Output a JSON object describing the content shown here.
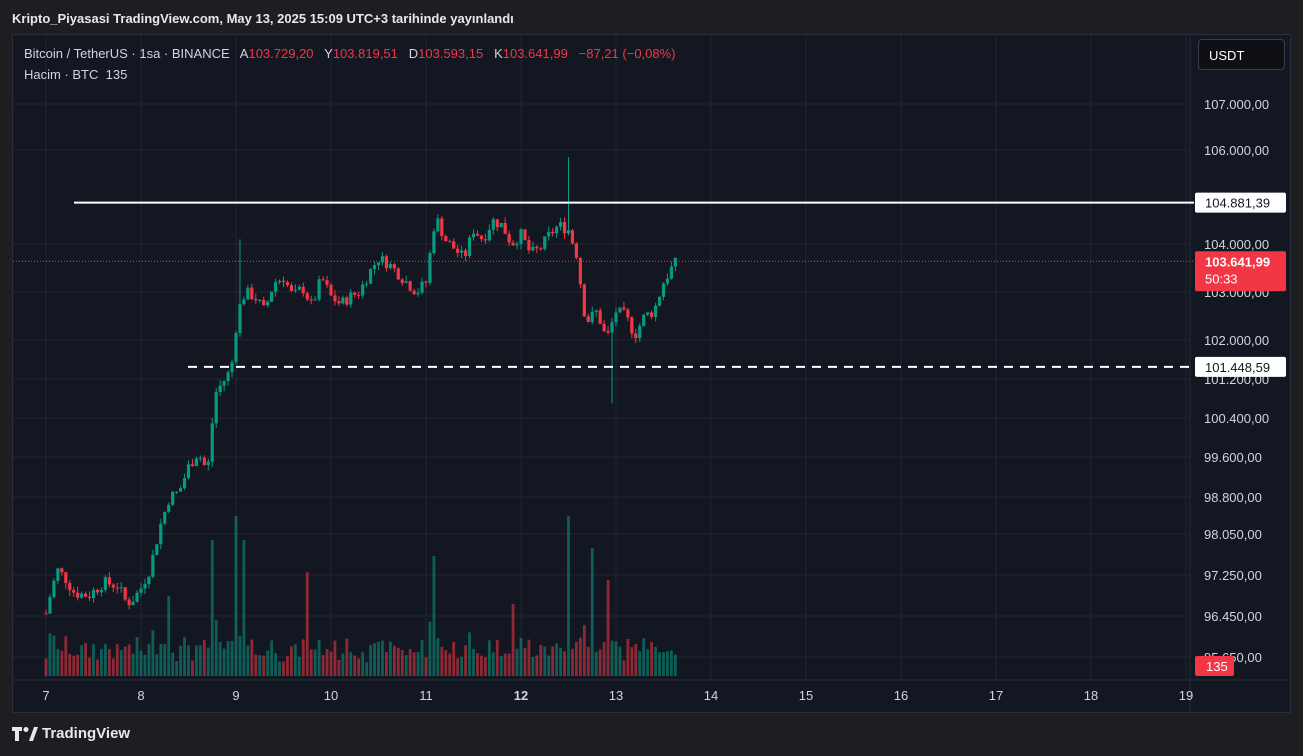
{
  "header": {
    "publish_text": "Kripto_Piyasasi TradingView.com, May 13, 2025 15:09 UTC+3 tarihinde yayınlandı"
  },
  "legend": {
    "symbol": "Bitcoin / TetherUS · 1sa · BINANCE",
    "open_label": "A",
    "open": "103.729,20",
    "high_label": "Y",
    "high": "103.819,51",
    "low_label": "D",
    "low": "103.593,15",
    "close_label": "K",
    "close": "103.641,99",
    "change": "−87,21 (−0,08%)",
    "volume_label": "Hacim · BTC",
    "volume": "135"
  },
  "currency_button": "USDT",
  "footer": {
    "brand": "TradingView"
  },
  "colors": {
    "up": "#089981",
    "down": "#f23645",
    "grid": "#232632",
    "axis_text": "#d1d4dc",
    "background": "#131722"
  },
  "chart_data": {
    "type": "candlestick",
    "y_ticks": [
      "107.000,00",
      "106.000,00",
      "104.000,00",
      "103.000,00",
      "102.000,00",
      "101.200,00",
      "100.400,00",
      "99.600,00",
      "98.800,00",
      "98.050,00",
      "97.250,00",
      "96.450,00",
      "95.650,00"
    ],
    "x_ticks": [
      "7",
      "8",
      "9",
      "10",
      "11",
      "12",
      "13",
      "14",
      "15",
      "16",
      "17",
      "18",
      "19"
    ],
    "x_bold_tick": "12",
    "resistance_label": "104.881,39",
    "support_label": "101.448,59",
    "last_price_label": "103.641,99",
    "countdown_label": "50:33",
    "volume_label": "135",
    "price_path": [
      [
        0,
        96.5
      ],
      [
        0.05,
        96.9
      ],
      [
        0.12,
        97.35
      ],
      [
        0.2,
        97.2
      ],
      [
        0.3,
        96.9
      ],
      [
        0.45,
        96.85
      ],
      [
        0.6,
        97.1
      ],
      [
        0.75,
        97.05
      ],
      [
        0.85,
        96.7
      ],
      [
        0.93,
        96.8
      ],
      [
        1.0,
        97.0
      ],
      [
        1.1,
        97.4
      ],
      [
        1.2,
        98.2
      ],
      [
        1.3,
        98.8
      ],
      [
        1.4,
        98.9
      ],
      [
        1.5,
        99.4
      ],
      [
        1.6,
        99.7
      ],
      [
        1.7,
        99.3
      ],
      [
        1.78,
        100.9
      ],
      [
        1.85,
        101.1
      ],
      [
        1.95,
        101.4
      ],
      [
        2.02,
        102.6
      ],
      [
        2.1,
        103.0
      ],
      [
        2.2,
        102.9
      ],
      [
        2.3,
        102.6
      ],
      [
        2.4,
        103.2
      ],
      [
        2.5,
        103.3
      ],
      [
        2.6,
        102.9
      ],
      [
        2.7,
        103.1
      ],
      [
        2.8,
        102.7
      ],
      [
        2.9,
        103.3
      ],
      [
        3.0,
        102.9
      ],
      [
        3.1,
        102.75
      ],
      [
        3.2,
        102.9
      ],
      [
        3.3,
        103.0
      ],
      [
        3.4,
        103.4
      ],
      [
        3.5,
        103.7
      ],
      [
        3.6,
        103.6
      ],
      [
        3.7,
        103.4
      ],
      [
        3.8,
        103.2
      ],
      [
        3.9,
        103.0
      ],
      [
        4.0,
        103.2
      ],
      [
        4.1,
        104.6
      ],
      [
        4.2,
        104.1
      ],
      [
        4.3,
        103.9
      ],
      [
        4.4,
        103.7
      ],
      [
        4.5,
        104.3
      ],
      [
        4.6,
        104.1
      ],
      [
        4.7,
        104.5
      ],
      [
        4.8,
        104.4
      ],
      [
        4.9,
        104.0
      ],
      [
        5.0,
        104.2
      ],
      [
        5.1,
        103.8
      ],
      [
        5.2,
        103.9
      ],
      [
        5.3,
        104.2
      ],
      [
        5.4,
        104.4
      ],
      [
        5.5,
        104.3
      ],
      [
        5.6,
        103.7
      ],
      [
        5.65,
        102.7
      ],
      [
        5.7,
        102.4
      ],
      [
        5.8,
        102.6
      ],
      [
        5.9,
        102.0
      ],
      [
        6.0,
        102.6
      ],
      [
        6.1,
        102.5
      ],
      [
        6.2,
        102.1
      ],
      [
        6.3,
        102.5
      ],
      [
        6.4,
        102.6
      ],
      [
        6.5,
        103.2
      ],
      [
        6.6,
        103.55
      ],
      [
        6.65,
        103.64
      ]
    ],
    "events": [
      {
        "x": 5.48,
        "high": 105.85
      },
      {
        "x": 5.95,
        "low": 100.7
      },
      {
        "x": 2.05,
        "high": 104.1
      }
    ],
    "volume_spikes": [
      [
        2.0,
        1.0
      ],
      [
        5.5,
        1.0
      ],
      [
        2.1,
        0.85
      ],
      [
        5.75,
        0.8
      ],
      [
        4.1,
        0.75
      ],
      [
        2.75,
        0.65
      ],
      [
        1.75,
        0.85
      ],
      [
        5.9,
        0.6
      ],
      [
        1.3,
        0.5
      ],
      [
        4.9,
        0.45
      ]
    ]
  }
}
